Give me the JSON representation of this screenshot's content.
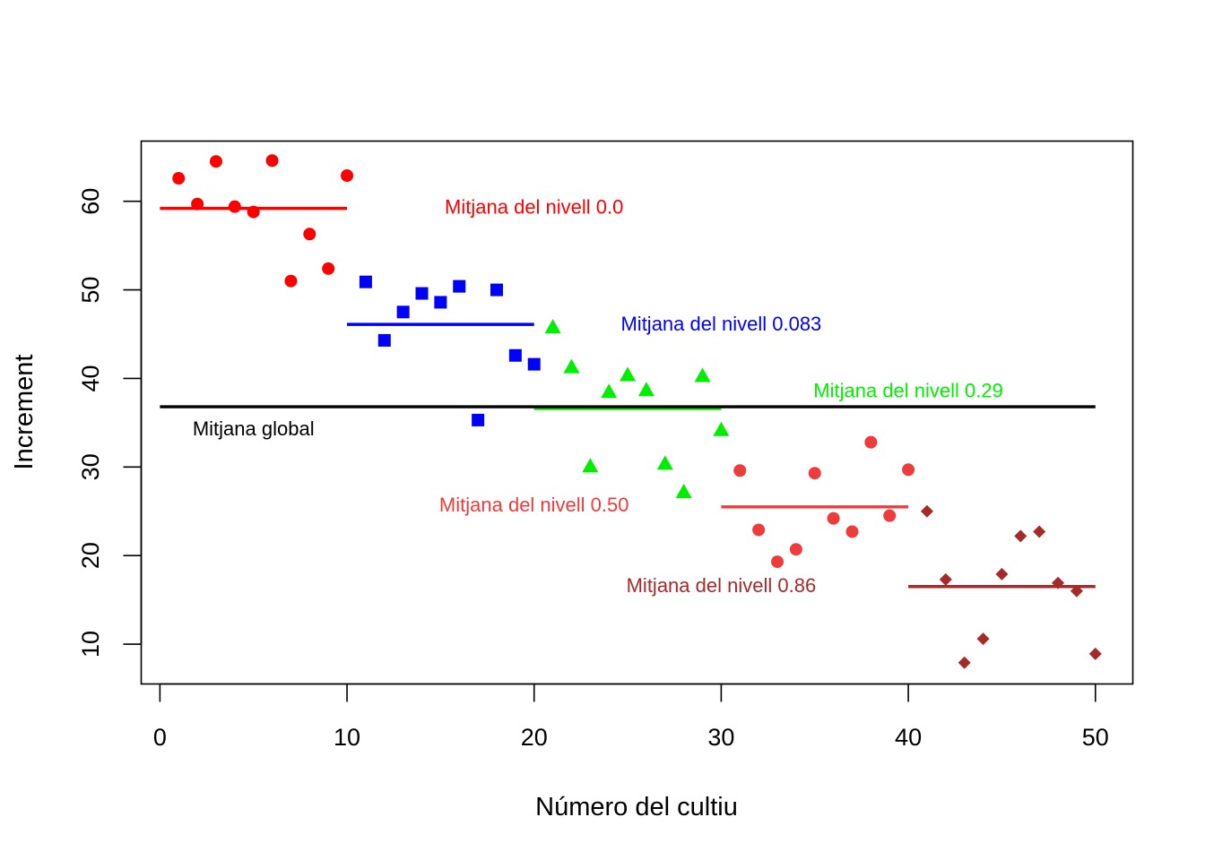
{
  "chart_data": {
    "type": "scatter",
    "xlabel": "Número del cultiu",
    "ylabel": "Increment",
    "xlim": [
      -1,
      52
    ],
    "ylim": [
      5.5,
      66.8
    ],
    "x_ticks": [
      0,
      10,
      20,
      30,
      40,
      50
    ],
    "y_ticks": [
      10,
      20,
      30,
      40,
      50,
      60
    ],
    "grid": false,
    "legend": "none",
    "series": [
      {
        "marker": "circle",
        "color": "#ff0000",
        "x": [
          1,
          2,
          3,
          4,
          5,
          6,
          7,
          8,
          9,
          10
        ],
        "y": [
          62.6,
          59.7,
          64.5,
          59.4,
          58.8,
          64.6,
          51.0,
          56.3,
          52.4,
          62.9
        ]
      },
      {
        "marker": "square",
        "color": "#0000ff",
        "x": [
          11,
          12,
          13,
          14,
          15,
          16,
          17,
          18,
          19,
          20
        ],
        "y": [
          50.9,
          44.3,
          47.5,
          49.6,
          48.6,
          50.4,
          35.3,
          50.0,
          42.6,
          41.6
        ]
      },
      {
        "marker": "triangle",
        "color": "#00ee00",
        "x": [
          21,
          22,
          23,
          24,
          25,
          26,
          27,
          28,
          29,
          30
        ],
        "y": [
          45.8,
          41.3,
          30.1,
          38.5,
          40.4,
          38.7,
          30.4,
          27.2,
          40.3,
          34.2
        ]
      },
      {
        "marker": "circle",
        "color": "#ee3b3b",
        "x": [
          31,
          32,
          33,
          34,
          35,
          36,
          37,
          38,
          39,
          40
        ],
        "y": [
          29.6,
          22.9,
          19.3,
          20.7,
          29.3,
          24.2,
          22.7,
          32.8,
          24.5,
          29.7
        ]
      },
      {
        "marker": "diamond",
        "color": "#a52a2a",
        "x": [
          41,
          42,
          43,
          44,
          45,
          46,
          47,
          48,
          49,
          50
        ],
        "y": [
          25.0,
          17.3,
          7.9,
          10.6,
          17.9,
          22.2,
          22.7,
          16.9,
          16.0,
          8.9
        ]
      }
    ],
    "mean_lines": [
      {
        "x0": 0,
        "x1": 10,
        "y": 59.2,
        "color": "#ff0000"
      },
      {
        "x0": 10,
        "x1": 20,
        "y": 46.1,
        "color": "#0000ff"
      },
      {
        "x0": 20,
        "x1": 30,
        "y": 36.6,
        "color": "#00ee00"
      },
      {
        "x0": 30,
        "x1": 40,
        "y": 25.5,
        "color": "#ee3b3b"
      },
      {
        "x0": 40,
        "x1": 50,
        "y": 16.5,
        "color": "#a52a2a"
      },
      {
        "x0": 0,
        "x1": 50,
        "y": 36.8,
        "color": "#000000"
      }
    ],
    "annotations": [
      {
        "text": "Mitjana del nivell 0.0",
        "x": 20,
        "y": 59.4,
        "color": "#ff0000"
      },
      {
        "text": "Mitjana del nivell 0.083",
        "x": 30,
        "y": 46.2,
        "color": "#0000ff"
      },
      {
        "text": "Mitjana del nivell 0.29",
        "x": 40,
        "y": 38.7,
        "color": "#00ee00"
      },
      {
        "text": "Mitjana global",
        "x": 5,
        "y": 34.4,
        "color": "#000000"
      },
      {
        "text": "Mitjana del nivell 0.50",
        "x": 20,
        "y": 25.8,
        "color": "#ee3b3b"
      },
      {
        "text": "Mitjana del nivell 0.86",
        "x": 30,
        "y": 16.7,
        "color": "#a52a2a"
      }
    ]
  }
}
